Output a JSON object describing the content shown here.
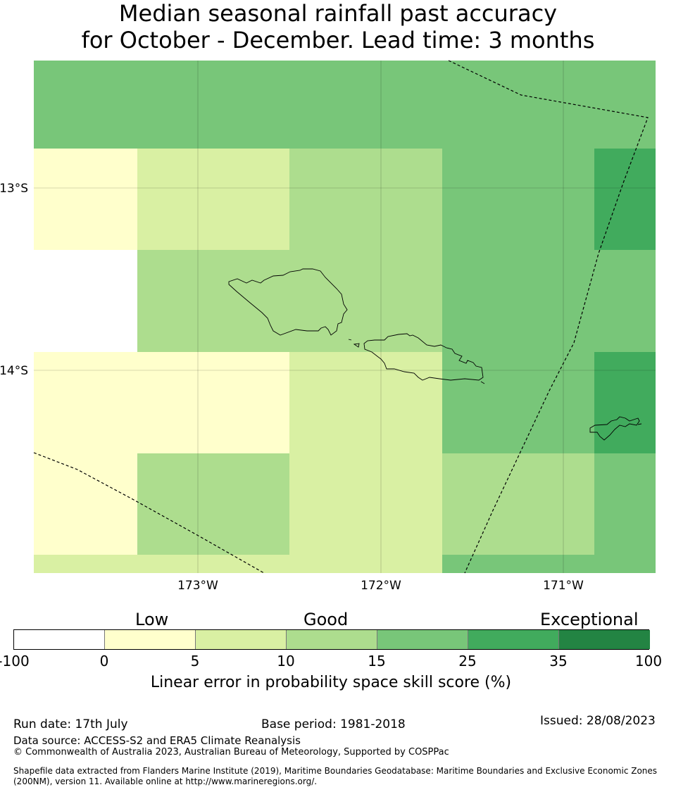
{
  "title": {
    "line1": "Median seasonal rainfall past accuracy",
    "line2": "for October - December. Lead time: 3 months"
  },
  "map": {
    "lat_labels": [
      "13°S",
      "14°S"
    ],
    "lon_labels": [
      "173°W",
      "172°W",
      "171°W"
    ],
    "colors": {
      "white": "#ffffff",
      "c0": "#ffffcc",
      "c5": "#d9f0a3",
      "c10": "#addd8e",
      "c15": "#78c679",
      "c25": "#41ab5d",
      "c35": "#238443"
    }
  },
  "legend": {
    "categories": {
      "low": "Low",
      "good": "Good",
      "exceptional": "Exceptional"
    },
    "ticks": [
      "-100",
      "0",
      "5",
      "10",
      "15",
      "25",
      "35",
      "100"
    ],
    "label": "Linear error in probability space skill score (%)"
  },
  "footer": {
    "run_date": "Run date: 17th July",
    "base_period": "Base period: 1981-2018",
    "issued": "Issued: 28/08/2023",
    "data_source": "Data source: ACCESS-S2 and ERA5 Climate Reanalysis",
    "copyright": "© Commonwealth of Australia 2023, Australian Bureau of Meteorology, Supported by COSPPac",
    "shapefile_line1": "Shapefile data extracted from Flanders Marine Institute (2019), Maritime Boundaries Geodatabase: Maritime Boundaries and Exclusive Economic Zones",
    "shapefile_line2": "(200NM), version 11. Available online at http://www.marineregions.org/."
  }
}
